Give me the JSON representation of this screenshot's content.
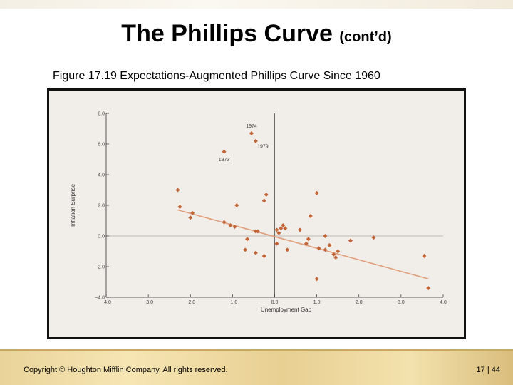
{
  "slide": {
    "title": "The Phillips Curve",
    "title_suffix": "(cont’d)",
    "figure_caption": "Figure 17.19 Expectations-Augmented Phillips Curve Since 1960",
    "copyright": "Copyright © Houghton Mifflin Company.  All rights reserved.",
    "page": "17 | 44"
  },
  "colors": {
    "point": "#c2663a",
    "trend": "#e0a07e",
    "axis": "#333333",
    "plot_bg": "#f1ede8"
  },
  "chart_data": {
    "type": "scatter",
    "title": "",
    "xlabel": "Unemployment Gap",
    "ylabel": "Inflation Surprise",
    "xlim": [
      -4.0,
      4.0
    ],
    "ylim": [
      -4.0,
      8.0
    ],
    "xticks": [
      -4.0,
      -3.0,
      -2.0,
      -1.0,
      0.0,
      1.0,
      2.0,
      3.0,
      4.0
    ],
    "yticks": [
      -4.0,
      -2.0,
      0.0,
      2.0,
      4.0,
      6.0,
      8.0
    ],
    "xtick_labels": [
      "−4.0",
      "−3.0",
      "−2.0",
      "−1.0",
      "0.0",
      "1.0",
      "2.0",
      "3.0",
      "4.0"
    ],
    "ytick_labels": [
      "−4.0",
      "−2.0",
      "0.0",
      "2.0",
      "4.0",
      "6.0",
      "8.0"
    ],
    "points": [
      [
        -2.3,
        3.0
      ],
      [
        -2.25,
        1.9
      ],
      [
        -2.0,
        1.2
      ],
      [
        -1.95,
        1.5
      ],
      [
        -1.2,
        5.5
      ],
      [
        -1.2,
        0.9
      ],
      [
        -1.05,
        0.7
      ],
      [
        -0.95,
        0.6
      ],
      [
        -0.9,
        2.0
      ],
      [
        -0.7,
        -0.9
      ],
      [
        -0.65,
        -0.2
      ],
      [
        -0.55,
        6.7
      ],
      [
        -0.45,
        6.2
      ],
      [
        -0.45,
        0.3
      ],
      [
        -0.45,
        -1.1
      ],
      [
        -0.4,
        0.3
      ],
      [
        -0.25,
        2.3
      ],
      [
        -0.2,
        2.7
      ],
      [
        -0.25,
        -1.3
      ],
      [
        0.05,
        0.4
      ],
      [
        0.05,
        -0.5
      ],
      [
        0.1,
        0.2
      ],
      [
        0.15,
        0.5
      ],
      [
        0.2,
        0.7
      ],
      [
        0.25,
        0.5
      ],
      [
        0.3,
        -0.9
      ],
      [
        0.6,
        0.4
      ],
      [
        0.75,
        -0.5
      ],
      [
        0.8,
        -0.2
      ],
      [
        0.85,
        1.3
      ],
      [
        1.0,
        2.8
      ],
      [
        1.0,
        -2.8
      ],
      [
        1.05,
        -0.8
      ],
      [
        1.2,
        -0.9
      ],
      [
        1.2,
        0.0
      ],
      [
        1.3,
        -0.6
      ],
      [
        1.4,
        -1.2
      ],
      [
        1.45,
        -1.4
      ],
      [
        1.5,
        -1.0
      ],
      [
        1.8,
        -0.3
      ],
      [
        2.35,
        -0.1
      ],
      [
        3.55,
        -1.3
      ],
      [
        3.65,
        -3.4
      ]
    ],
    "trendline": {
      "x": [
        -2.3,
        3.65
      ],
      "y": [
        1.7,
        -2.8
      ]
    },
    "annotations": [
      {
        "label": "1974",
        "x": -0.55,
        "y": 6.7
      },
      {
        "label": "1979",
        "x": -0.45,
        "y": 6.2
      },
      {
        "label": "1973",
        "x": -1.2,
        "y": 5.5
      }
    ],
    "legend": "none",
    "grid": false
  }
}
